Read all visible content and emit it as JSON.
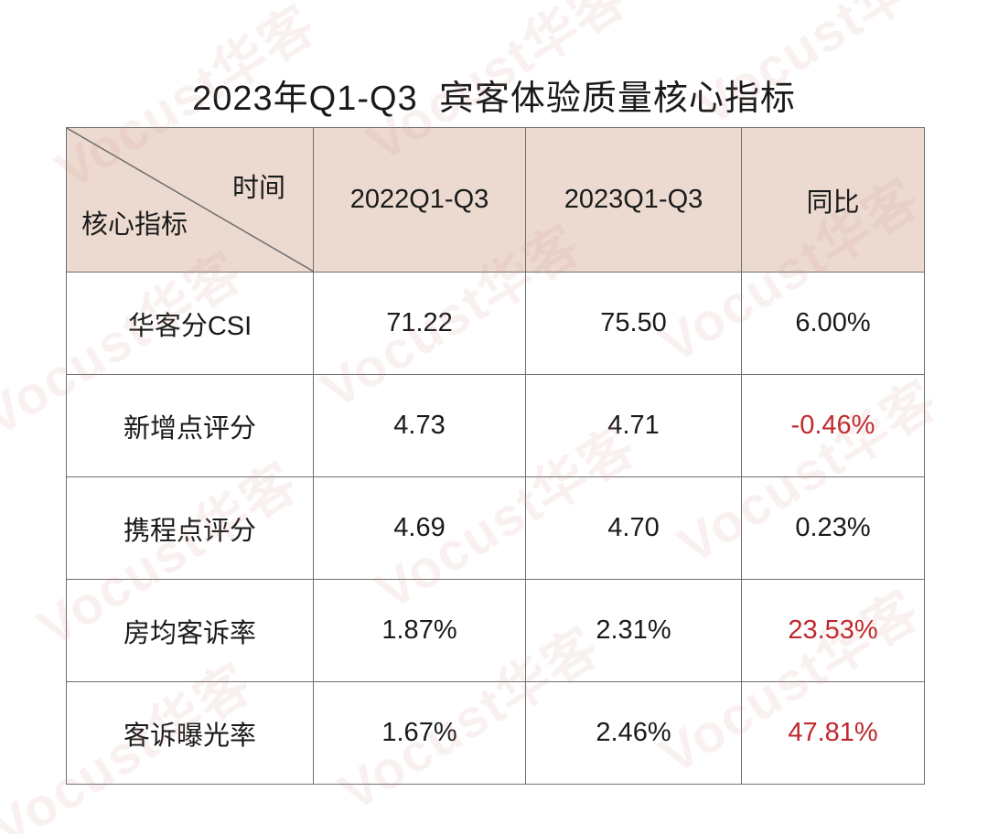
{
  "title": "2023年Q1-Q3  宾客体验质量核心指标",
  "header": {
    "time_label": "时间",
    "metric_label": "核心指标",
    "columns": [
      "2022Q1-Q3",
      "2023Q1-Q3",
      "同比"
    ]
  },
  "rows": [
    {
      "metric": "华客分CSI",
      "v2022": "71.22",
      "v2023": "75.50",
      "yoy": "6.00%",
      "yoy_red": false
    },
    {
      "metric": "新增点评分",
      "v2022": "4.73",
      "v2023": "4.71",
      "yoy": "-0.46%",
      "yoy_red": true
    },
    {
      "metric": "携程点评分",
      "v2022": "4.69",
      "v2023": "4.70",
      "yoy": "0.23%",
      "yoy_red": false
    },
    {
      "metric": "房均客诉率",
      "v2022": "1.87%",
      "v2023": "2.31%",
      "yoy": "23.53%",
      "yoy_red": true
    },
    {
      "metric": "客诉曝光率",
      "v2022": "1.67%",
      "v2023": "2.46%",
      "yoy": "47.81%",
      "yoy_red": true
    }
  ],
  "watermark": "Vocust华客",
  "colors": {
    "header_bg": "#ecdad0",
    "negative": "#c0282c",
    "border": "#6e6e6e"
  }
}
